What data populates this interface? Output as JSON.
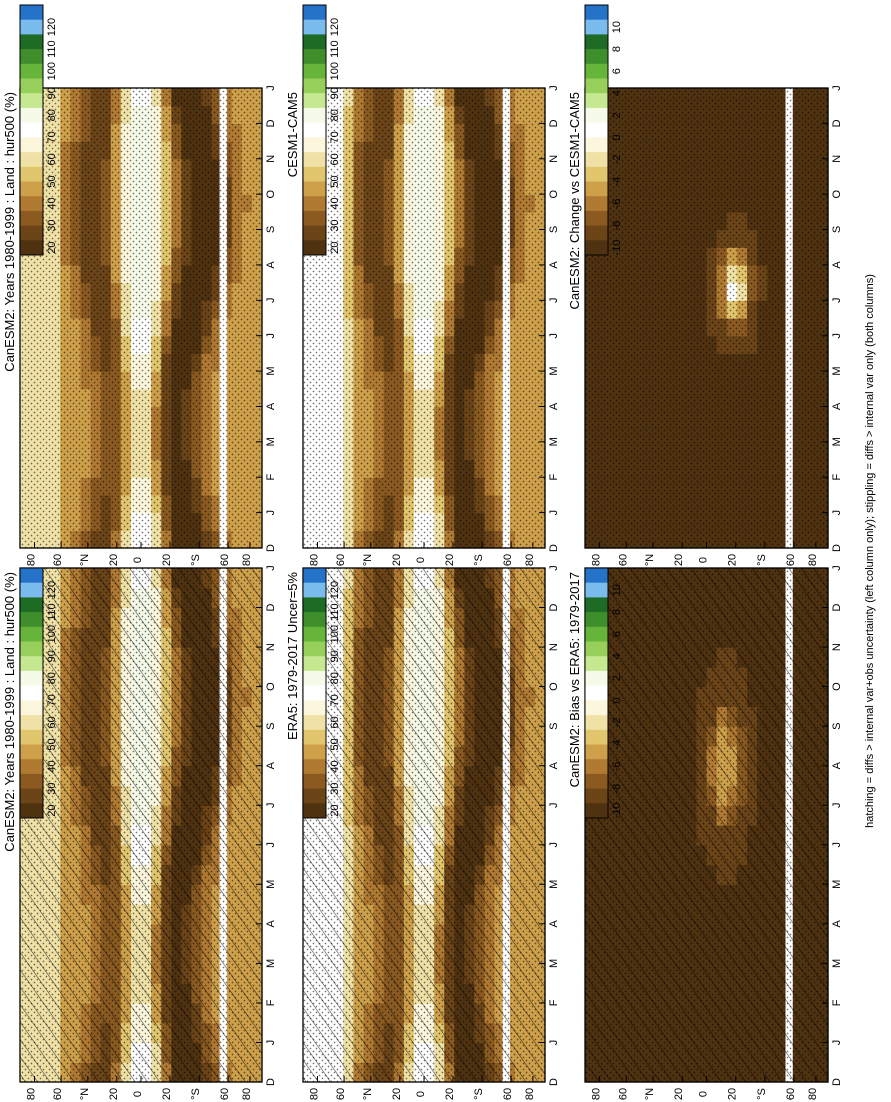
{
  "figure": {
    "footer": "hatching = diffs > internal var+obs uncertainty (left column only); stippling = diffs > internal var only (both columns)"
  },
  "chart_data": [
    {
      "type": "heatmap",
      "title": "CanESM2: Years 1980-1999 : Land : hur500 (%)",
      "x_ticks": [
        "D",
        "J",
        "F",
        "M",
        "A",
        "M",
        "J",
        "J",
        "A",
        "S",
        "O",
        "N",
        "D",
        "J"
      ],
      "y_ticks": [
        "80",
        "60",
        "°N",
        "20",
        "0",
        "20",
        "°S",
        "60",
        "80"
      ],
      "colorbar_labels": [
        "120",
        "110",
        "100",
        "90",
        "80",
        "70",
        "60",
        "50",
        "40",
        "30",
        "20"
      ],
      "colors": [
        "#2473c8",
        "#7bbcef",
        "#1e6b26",
        "#3e8f2c",
        "#66b43a",
        "#96d05a",
        "#c6e890",
        "#f5fbe8",
        "#ffffff",
        "#fbf6dc",
        "#f0e2a6",
        "#e2c66e",
        "#cea04a",
        "#b07a32",
        "#8a5a20",
        "#6b4418",
        "#4f3210"
      ],
      "hatching": true,
      "stippling": true
    },
    {
      "type": "heatmap",
      "title": "CanESM2: Years 1980-1999 : Land : hur500 (%)",
      "x_ticks": [
        "D",
        "J",
        "F",
        "M",
        "A",
        "M",
        "J",
        "J",
        "A",
        "S",
        "O",
        "N",
        "D",
        "J"
      ],
      "y_ticks": [
        "80",
        "60",
        "°N",
        "20",
        "0",
        "20",
        "°S",
        "60",
        "80"
      ],
      "colorbar_labels": [
        "120",
        "110",
        "100",
        "90",
        "80",
        "70",
        "60",
        "50",
        "40",
        "30",
        "20"
      ],
      "colors": [
        "#2473c8",
        "#7bbcef",
        "#1e6b26",
        "#3e8f2c",
        "#66b43a",
        "#96d05a",
        "#c6e890",
        "#f5fbe8",
        "#ffffff",
        "#fbf6dc",
        "#f0e2a6",
        "#e2c66e",
        "#cea04a",
        "#b07a32",
        "#8a5a20",
        "#6b4418",
        "#4f3210"
      ],
      "hatching": false,
      "stippling": true
    },
    {
      "type": "heatmap",
      "title": "ERA5: 1979-2017 Uncer=5%",
      "x_ticks": [
        "D",
        "J",
        "F",
        "M",
        "A",
        "M",
        "J",
        "J",
        "A",
        "S",
        "O",
        "N",
        "D",
        "J"
      ],
      "y_ticks": [
        "80",
        "60",
        "°N",
        "20",
        "0",
        "20",
        "°S",
        "60",
        "80"
      ],
      "colorbar_labels": [
        "120",
        "110",
        "100",
        "90",
        "80",
        "70",
        "60",
        "50",
        "40",
        "30",
        "20"
      ],
      "colors": [
        "#2473c8",
        "#7bbcef",
        "#1e6b26",
        "#3e8f2c",
        "#66b43a",
        "#96d05a",
        "#c6e890",
        "#f5fbe8",
        "#ffffff",
        "#fbf6dc",
        "#f0e2a6",
        "#e2c66e",
        "#cea04a",
        "#b07a32",
        "#8a5a20",
        "#6b4418",
        "#4f3210"
      ],
      "hatching": true,
      "stippling": true
    },
    {
      "type": "heatmap",
      "title": "CESM1-CAM5",
      "x_ticks": [
        "D",
        "J",
        "F",
        "M",
        "A",
        "M",
        "J",
        "J",
        "A",
        "S",
        "O",
        "N",
        "D",
        "J"
      ],
      "y_ticks": [
        "80",
        "60",
        "°N",
        "20",
        "0",
        "20",
        "°S",
        "60",
        "80"
      ],
      "colorbar_labels": [
        "120",
        "110",
        "100",
        "90",
        "80",
        "70",
        "60",
        "50",
        "40",
        "30",
        "20"
      ],
      "colors": [
        "#2473c8",
        "#7bbcef",
        "#1e6b26",
        "#3e8f2c",
        "#66b43a",
        "#96d05a",
        "#c6e890",
        "#f5fbe8",
        "#ffffff",
        "#fbf6dc",
        "#f0e2a6",
        "#e2c66e",
        "#cea04a",
        "#b07a32",
        "#8a5a20",
        "#6b4418",
        "#4f3210"
      ],
      "hatching": false,
      "stippling": true
    },
    {
      "type": "heatmap",
      "title": "CanESM2: Bias vs ERA5: 1979-2017",
      "x_ticks": [
        "D",
        "J",
        "F",
        "M",
        "A",
        "M",
        "J",
        "J",
        "A",
        "S",
        "O",
        "N",
        "D",
        "J"
      ],
      "y_ticks": [
        "80",
        "60",
        "°N",
        "20",
        "0",
        "20",
        "°S",
        "60",
        "80"
      ],
      "colorbar_labels": [
        "10",
        "8",
        "6",
        "4",
        "2",
        "0",
        "-2",
        "-4",
        "-6",
        "-8",
        "-10"
      ],
      "colors": [
        "#2473c8",
        "#7bbcef",
        "#1e6b26",
        "#3e8f2c",
        "#66b43a",
        "#96d05a",
        "#c6e890",
        "#f5fbe8",
        "#ffffff",
        "#fbf6dc",
        "#f0e2a6",
        "#e2c66e",
        "#cea04a",
        "#b07a32",
        "#8a5a20",
        "#6b4418",
        "#4f3210"
      ],
      "hatching": true,
      "stippling": true
    },
    {
      "type": "heatmap",
      "title": "CanESM2: Change vs CESM1-CAM5",
      "x_ticks": [
        "D",
        "J",
        "F",
        "M",
        "A",
        "M",
        "J",
        "J",
        "A",
        "S",
        "O",
        "N",
        "D",
        "J"
      ],
      "y_ticks": [
        "80",
        "60",
        "°N",
        "20",
        "0",
        "20",
        "°S",
        "60",
        "80"
      ],
      "colorbar_labels": [
        "10",
        "8",
        "6",
        "4",
        "2",
        "0",
        "-2",
        "-4",
        "-6",
        "-8",
        "-10"
      ],
      "colors": [
        "#2473c8",
        "#7bbcef",
        "#1e6b26",
        "#3e8f2c",
        "#66b43a",
        "#96d05a",
        "#c6e890",
        "#f5fbe8",
        "#ffffff",
        "#fbf6dc",
        "#f0e2a6",
        "#e2c66e",
        "#cea04a",
        "#b07a32",
        "#8a5a20",
        "#6b4418",
        "#4f3210"
      ],
      "hatching": false,
      "stippling": true
    }
  ]
}
